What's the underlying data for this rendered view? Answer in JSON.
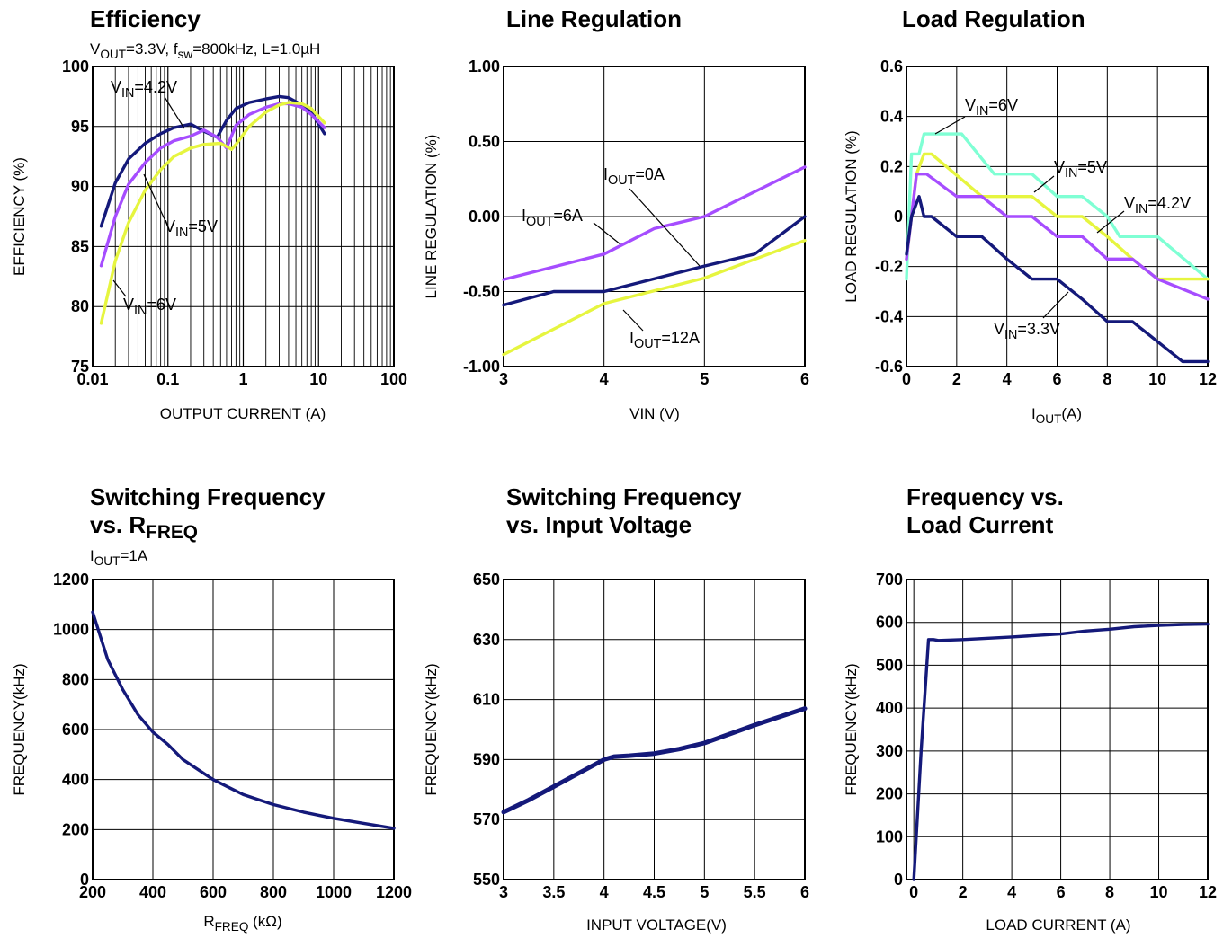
{
  "colors": {
    "navy": "#14197a",
    "purple": "#a64dff",
    "yellow": "#e6f53f",
    "aqua": "#7fffd4",
    "grid": "#000000"
  },
  "chart_data": [
    {
      "id": "efficiency",
      "type": "line",
      "title": "Efficiency",
      "subtitle": {
        "v": "V",
        "sub1": "OUT",
        "t1": "=3.3V, f",
        "sub2": "sw",
        "t2": "=800kHz, L=1.0µH"
      },
      "xlabel": "OUTPUT CURRENT (A)",
      "ylabel": "EFFICIENCY (%)",
      "xscale": "log",
      "xlim": [
        0.01,
        100
      ],
      "ylim": [
        75,
        100
      ],
      "xticks": [
        {
          "v": 0.01,
          "t": "0.01"
        },
        {
          "v": 0.1,
          "t": "0.1"
        },
        {
          "v": 1,
          "t": "1"
        },
        {
          "v": 10,
          "t": "10"
        },
        {
          "v": 100,
          "t": "100"
        }
      ],
      "yticks": [
        {
          "v": 75,
          "t": "75"
        },
        {
          "v": 80,
          "t": "80"
        },
        {
          "v": 85,
          "t": "85"
        },
        {
          "v": 90,
          "t": "90"
        },
        {
          "v": 95,
          "t": "95"
        },
        {
          "v": 100,
          "t": "100"
        }
      ],
      "series": [
        {
          "color": "navy",
          "x": [
            0.013,
            0.02,
            0.03,
            0.05,
            0.08,
            0.12,
            0.2,
            0.3,
            0.45,
            0.6,
            0.8,
            1.2,
            2,
            3,
            4,
            6,
            8,
            12
          ],
          "y": [
            86.7,
            90.3,
            92.3,
            93.6,
            94.4,
            94.9,
            95.2,
            94.6,
            94.1,
            95.5,
            96.5,
            97.0,
            97.3,
            97.5,
            97.4,
            96.8,
            96.2,
            94.4
          ]
        },
        {
          "color": "purple",
          "x": [
            0.013,
            0.02,
            0.03,
            0.05,
            0.08,
            0.12,
            0.2,
            0.3,
            0.45,
            0.6,
            0.8,
            1.2,
            2,
            3,
            4,
            6,
            8,
            12
          ],
          "y": [
            83.4,
            87.5,
            90.2,
            92.0,
            93.2,
            93.8,
            94.2,
            94.7,
            94.1,
            93.2,
            95.1,
            96.0,
            96.6,
            96.9,
            96.9,
            96.6,
            96.0,
            94.9
          ]
        },
        {
          "color": "yellow",
          "x": [
            0.013,
            0.02,
            0.03,
            0.05,
            0.08,
            0.12,
            0.2,
            0.3,
            0.5,
            0.7,
            0.8,
            1.2,
            2,
            3,
            4,
            6,
            8,
            12
          ],
          "y": [
            78.6,
            83.8,
            87.0,
            89.7,
            91.4,
            92.5,
            93.2,
            93.5,
            93.6,
            93.1,
            93.5,
            95.0,
            96.2,
            96.8,
            97.0,
            96.9,
            96.5,
            95.3
          ]
        }
      ],
      "annotations": [
        {
          "v": "V",
          "s": "IN",
          "t": "=4.2V"
        },
        {
          "v": "V",
          "s": "IN",
          "t": "=5V"
        },
        {
          "v": "V",
          "s": "IN",
          "t": "=6V"
        }
      ]
    },
    {
      "id": "line-regulation",
      "type": "line",
      "title": "Line Regulation",
      "xlabel": "VIN (V)",
      "ylabel": "LINE REGULATION (%)",
      "xlim": [
        3,
        6
      ],
      "ylim": [
        -1.0,
        1.0
      ],
      "xticks": [
        {
          "v": 3,
          "t": "3"
        },
        {
          "v": 4,
          "t": "4"
        },
        {
          "v": 5,
          "t": "5"
        },
        {
          "v": 6,
          "t": "6"
        }
      ],
      "yticks": [
        {
          "v": -1.0,
          "t": "-1.00"
        },
        {
          "v": -0.5,
          "t": "-0.50"
        },
        {
          "v": 0,
          "t": "0.00"
        },
        {
          "v": 0.5,
          "t": "0.50"
        },
        {
          "v": 1.0,
          "t": "1.00"
        }
      ],
      "series": [
        {
          "color": "purple",
          "x": [
            3,
            4,
            4.5,
            5,
            6
          ],
          "y": [
            -0.42,
            -0.25,
            -0.08,
            0.0,
            0.33
          ]
        },
        {
          "color": "navy",
          "x": [
            3,
            3.5,
            4,
            5,
            5.5,
            6
          ],
          "y": [
            -0.59,
            -0.5,
            -0.5,
            -0.33,
            -0.25,
            0.0
          ]
        },
        {
          "color": "yellow",
          "x": [
            3,
            4,
            5,
            6
          ],
          "y": [
            -0.92,
            -0.58,
            -0.41,
            -0.16
          ]
        }
      ],
      "annotations": [
        {
          "v": "I",
          "s": "OUT",
          "t": "=0A"
        },
        {
          "v": "I",
          "s": "OUT",
          "t": "=6A"
        },
        {
          "v": "I",
          "s": "OUT",
          "t": "=12A"
        }
      ]
    },
    {
      "id": "load-regulation",
      "type": "line",
      "title": "Load Regulation",
      "xlabel": {
        "v": "I",
        "s": "OUT",
        "t": "(A)"
      },
      "ylabel": "LOAD REGULATION (%)",
      "xlim": [
        0,
        12
      ],
      "ylim": [
        -0.6,
        0.6
      ],
      "xticks": [
        {
          "v": 0,
          "t": "0"
        },
        {
          "v": 2,
          "t": "2"
        },
        {
          "v": 4,
          "t": "4"
        },
        {
          "v": 6,
          "t": "6"
        },
        {
          "v": 8,
          "t": "8"
        },
        {
          "v": 10,
          "t": "10"
        },
        {
          "v": 12,
          "t": "12"
        }
      ],
      "yticks": [
        {
          "v": -0.6,
          "t": "-0.6"
        },
        {
          "v": -0.4,
          "t": "-0.4"
        },
        {
          "v": -0.2,
          "t": "-0.2"
        },
        {
          "v": 0,
          "t": "0"
        },
        {
          "v": 0.2,
          "t": "0.2"
        },
        {
          "v": 0.4,
          "t": "0.4"
        },
        {
          "v": 0.6,
          "t": "0.6"
        }
      ],
      "series": [
        {
          "color": "aqua",
          "x": [
            0,
            0.2,
            0.5,
            0.7,
            2,
            2.2,
            3.5,
            5,
            6,
            7,
            8,
            8.5,
            10,
            12
          ],
          "y": [
            -0.25,
            0.25,
            0.25,
            0.33,
            0.33,
            0.33,
            0.17,
            0.17,
            0.08,
            0.08,
            0.0,
            -0.08,
            -0.08,
            -0.25
          ]
        },
        {
          "color": "yellow",
          "x": [
            0,
            0.4,
            0.7,
            1,
            3,
            5,
            6,
            7,
            8,
            9,
            10,
            12
          ],
          "y": [
            -0.17,
            0.17,
            0.25,
            0.25,
            0.08,
            0.08,
            0.0,
            0.0,
            -0.08,
            -0.17,
            -0.25,
            -0.25
          ]
        },
        {
          "color": "purple",
          "x": [
            0,
            0.4,
            0.8,
            2,
            3,
            4,
            5,
            6,
            7,
            8,
            9,
            10,
            12
          ],
          "y": [
            -0.17,
            0.17,
            0.17,
            0.08,
            0.08,
            0.0,
            0.0,
            -0.08,
            -0.08,
            -0.17,
            -0.17,
            -0.25,
            -0.33
          ]
        },
        {
          "color": "navy",
          "x": [
            0,
            0.2,
            0.5,
            0.7,
            1,
            2,
            3,
            4,
            5,
            6,
            7,
            8,
            9,
            10,
            11,
            12
          ],
          "y": [
            -0.15,
            0.0,
            0.08,
            0.0,
            0.0,
            -0.08,
            -0.08,
            -0.17,
            -0.25,
            -0.25,
            -0.33,
            -0.42,
            -0.42,
            -0.5,
            -0.58,
            -0.58
          ]
        }
      ],
      "annotations": [
        {
          "v": "V",
          "s": "IN",
          "t": "=6V"
        },
        {
          "v": "V",
          "s": "IN",
          "t": "=5V"
        },
        {
          "v": "V",
          "s": "IN",
          "t": "=4.2V"
        },
        {
          "v": "V",
          "s": "IN",
          "t": "=3.3V"
        }
      ]
    },
    {
      "id": "freq-vs-rfreq",
      "type": "line",
      "title": {
        "line1": "Switching Frequency",
        "line2a": "vs. R",
        "line2s": "FREQ"
      },
      "subtitle": {
        "v": "I",
        "s": "OUT",
        "t": "=1A"
      },
      "xlabel": {
        "v": "R",
        "s": "FREQ",
        "t": " (kΩ)"
      },
      "ylabel": "FREQUENCY(kHz)",
      "xlim": [
        200,
        1200
      ],
      "ylim": [
        0,
        1200
      ],
      "xticks": [
        {
          "v": 200,
          "t": "200"
        },
        {
          "v": 400,
          "t": "400"
        },
        {
          "v": 600,
          "t": "600"
        },
        {
          "v": 800,
          "t": "800"
        },
        {
          "v": 1000,
          "t": "1000"
        },
        {
          "v": 1200,
          "t": "1200"
        }
      ],
      "yticks": [
        {
          "v": 0,
          "t": "0"
        },
        {
          "v": 200,
          "t": "200"
        },
        {
          "v": 400,
          "t": "400"
        },
        {
          "v": 600,
          "t": "600"
        },
        {
          "v": 800,
          "t": "800"
        },
        {
          "v": 1000,
          "t": "1000"
        },
        {
          "v": 1200,
          "t": "1200"
        }
      ],
      "series": [
        {
          "color": "navy",
          "x": [
            200,
            250,
            300,
            350,
            400,
            450,
            500,
            600,
            700,
            800,
            900,
            1000,
            1100,
            1200
          ],
          "y": [
            1070,
            880,
            760,
            660,
            590,
            540,
            480,
            400,
            340,
            300,
            270,
            245,
            225,
            205
          ]
        }
      ]
    },
    {
      "id": "freq-vs-vin",
      "type": "line",
      "title": {
        "line1": "Switching Frequency",
        "line2": "vs. Input Voltage"
      },
      "xlabel": "INPUT VOLTAGE(V)",
      "ylabel": "FREQUENCY(kHz)",
      "xlim": [
        3,
        6
      ],
      "ylim": [
        550,
        650
      ],
      "xticks": [
        {
          "v": 3,
          "t": "3"
        },
        {
          "v": 3.5,
          "t": "3.5"
        },
        {
          "v": 4,
          "t": "4"
        },
        {
          "v": 4.5,
          "t": "4.5"
        },
        {
          "v": 5,
          "t": "5"
        },
        {
          "v": 5.5,
          "t": "5.5"
        },
        {
          "v": 6,
          "t": "6"
        }
      ],
      "yticks": [
        {
          "v": 550,
          "t": "550"
        },
        {
          "v": 570,
          "t": "570"
        },
        {
          "v": 590,
          "t": "590"
        },
        {
          "v": 610,
          "t": "610"
        },
        {
          "v": 630,
          "t": "630"
        },
        {
          "v": 650,
          "t": "650"
        }
      ],
      "series": [
        {
          "color": "navy",
          "x": [
            3,
            3.25,
            3.5,
            3.75,
            4,
            4.1,
            4.25,
            4.5,
            4.75,
            5,
            5.25,
            5.5,
            6
          ],
          "y": [
            572.5,
            576.5,
            581,
            585.5,
            590,
            591,
            591.3,
            592,
            593.5,
            595.5,
            598.5,
            601.5,
            607
          ]
        }
      ]
    },
    {
      "id": "freq-vs-load",
      "type": "line",
      "title": {
        "line1": "Frequency vs.",
        "line2": "Load Current"
      },
      "xlabel": "LOAD CURRENT (A)",
      "ylabel": "FREQUENCY(kHz)",
      "xlim": [
        -0.3,
        12
      ],
      "ylim": [
        0,
        700
      ],
      "xticks": [
        {
          "v": 0,
          "t": "0"
        },
        {
          "v": 2,
          "t": "2"
        },
        {
          "v": 4,
          "t": "4"
        },
        {
          "v": 6,
          "t": "6"
        },
        {
          "v": 8,
          "t": "8"
        },
        {
          "v": 10,
          "t": "10"
        },
        {
          "v": 12,
          "t": "12"
        }
      ],
      "yticks": [
        {
          "v": 0,
          "t": "0"
        },
        {
          "v": 100,
          "t": "100"
        },
        {
          "v": 200,
          "t": "200"
        },
        {
          "v": 300,
          "t": "300"
        },
        {
          "v": 400,
          "t": "400"
        },
        {
          "v": 500,
          "t": "500"
        },
        {
          "v": 600,
          "t": "600"
        },
        {
          "v": 700,
          "t": "700"
        }
      ],
      "series": [
        {
          "color": "navy",
          "x": [
            0,
            0.3,
            0.6,
            0.8,
            1,
            2,
            4,
            6,
            7,
            8,
            9,
            10,
            11,
            12
          ],
          "y": [
            0,
            300,
            560,
            560,
            558,
            560,
            566,
            573,
            580,
            584,
            590,
            593,
            595,
            596
          ]
        }
      ]
    }
  ]
}
